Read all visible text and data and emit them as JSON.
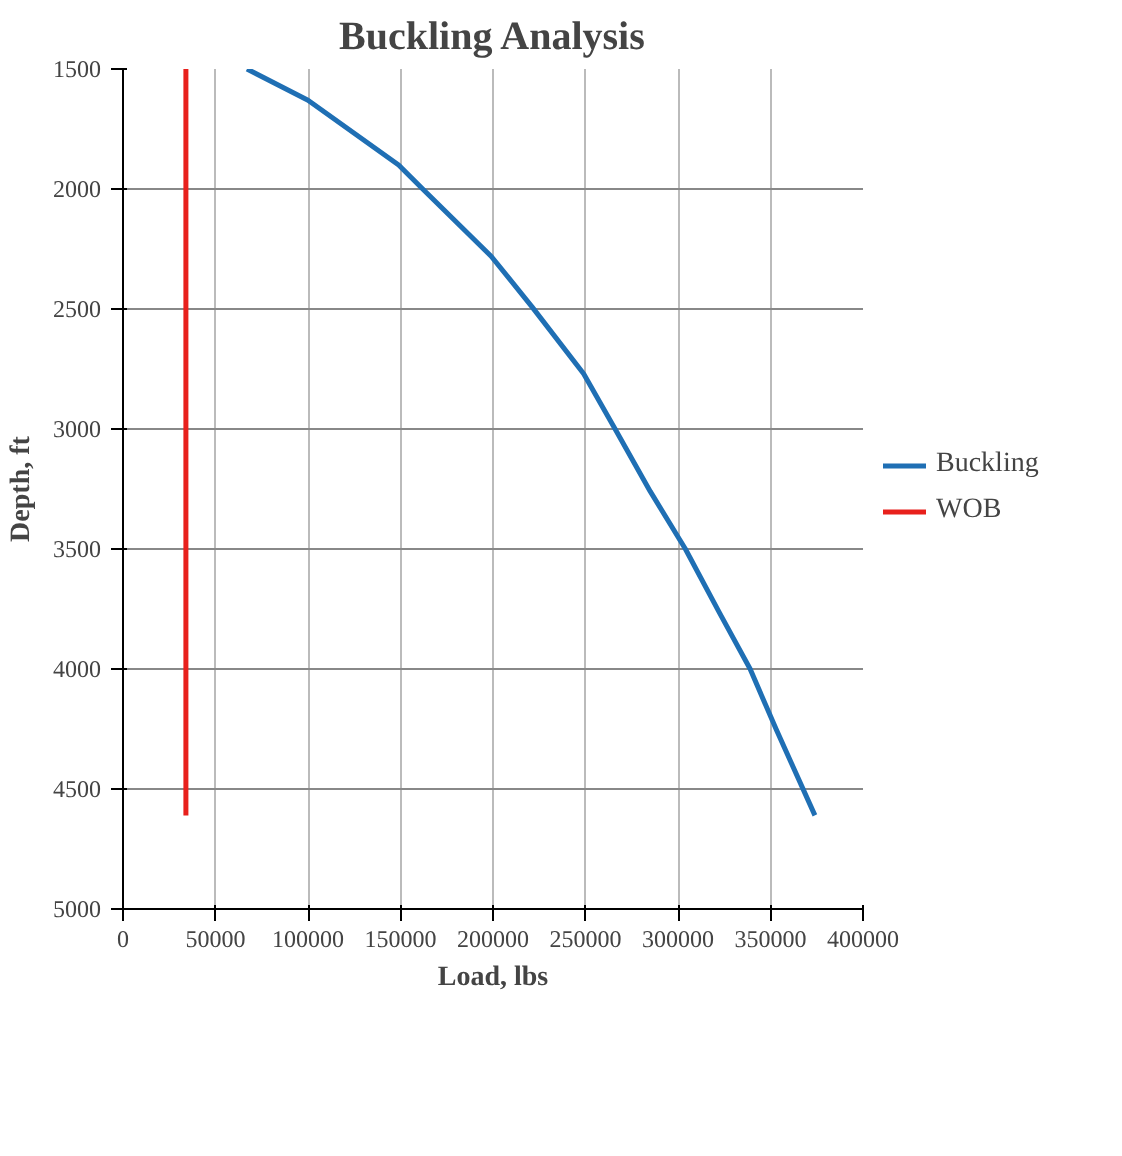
{
  "chart_data": {
    "type": "line",
    "title": "Buckling Analysis",
    "xlabel": "Load, lbs",
    "ylabel": "Depth, ft",
    "xlim": [
      0,
      400000
    ],
    "xticks": [
      0,
      50000,
      100000,
      150000,
      200000,
      250000,
      300000,
      350000,
      400000
    ],
    "ylim": [
      5000,
      1500
    ],
    "yticks": [
      1500,
      2000,
      2500,
      3000,
      3500,
      4000,
      4500,
      5000
    ],
    "grid": true,
    "legend": "right",
    "marker": "none",
    "line_style": "solid",
    "series": [
      {
        "name": "Buckling",
        "color": "#1f6fb4",
        "x": [
          67000,
          100000,
          149000,
          162000,
          199000,
          221000,
          249000,
          266000,
          285000,
          304000,
          322000,
          339000,
          353000,
          374000
        ],
        "values": [
          1500,
          1630,
          1900,
          2000,
          2280,
          2490,
          2770,
          3000,
          3260,
          3500,
          3760,
          4000,
          4250,
          4610
        ]
      },
      {
        "name": "WOB",
        "color": "#e8201c",
        "x": [
          34000,
          34000
        ],
        "values": [
          1500,
          4610
        ]
      }
    ]
  }
}
